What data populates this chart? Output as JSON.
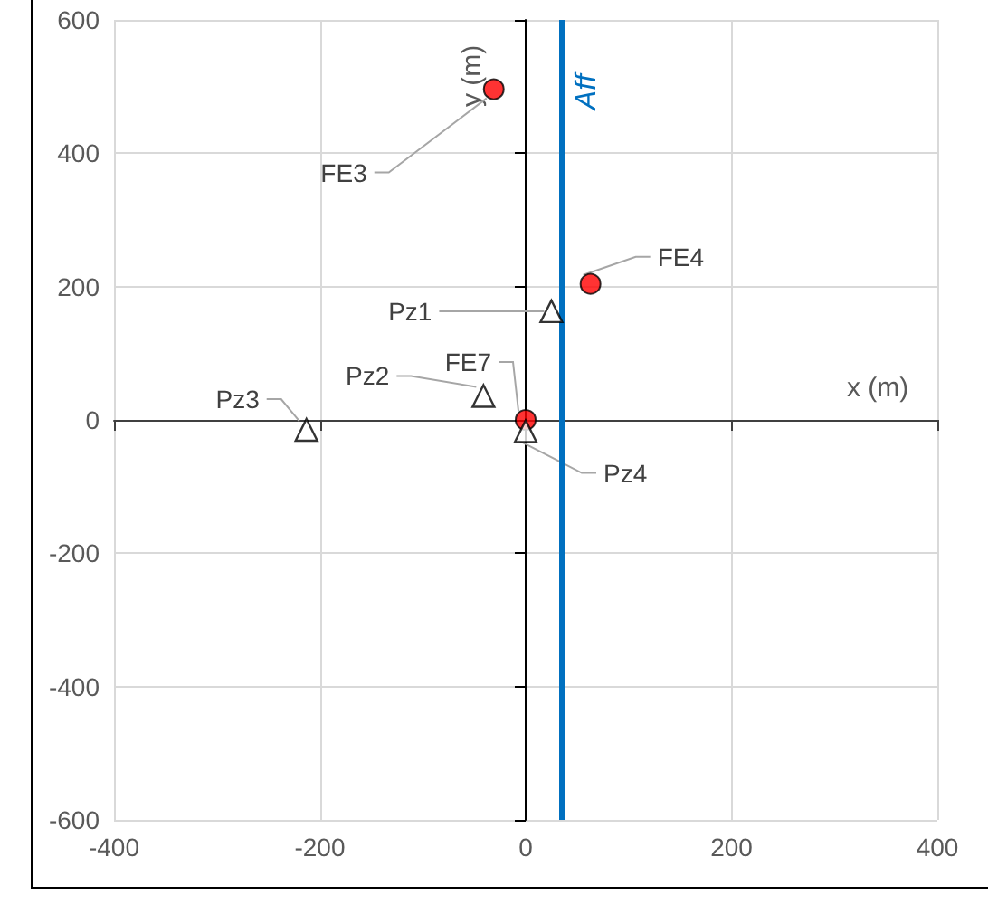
{
  "chart_data": {
    "type": "scatter",
    "xlabel": "x (m)",
    "ylabel": "y (m)",
    "xlim": [
      -400,
      400
    ],
    "xticks": [
      -400,
      -200,
      0,
      200,
      400
    ],
    "ylim": [
      -600,
      600
    ],
    "yticks": [
      -600,
      -400,
      -200,
      0,
      200,
      400,
      600
    ],
    "grid": true,
    "series": [
      {
        "color": "#ff0000",
        "marker": "circle",
        "x": [
          -31,
          63,
          0
        ],
        "values": [
          496,
          204,
          0
        ]
      },
      {
        "color": "#000000",
        "marker": "triangle",
        "x": [
          25,
          -41,
          -213,
          0
        ],
        "values": [
          163,
          36,
          -15,
          -17
        ]
      }
    ],
    "ref_lines": [
      {
        "axis": "x",
        "value": 35,
        "label": "Aff",
        "color": "#0070c0"
      }
    ],
    "annotations": [
      {
        "text": "FE3",
        "x": -31,
        "y": 496
      },
      {
        "text": "FE4",
        "x": 63,
        "y": 204
      },
      {
        "text": "FE7",
        "x": 0,
        "y": 0
      },
      {
        "text": "Pz1",
        "x": 25,
        "y": 163
      },
      {
        "text": "Pz2",
        "x": -41,
        "y": 36
      },
      {
        "text": "Pz3",
        "x": -213,
        "y": -15
      },
      {
        "text": "Pz4",
        "x": 0,
        "y": -17
      }
    ]
  }
}
